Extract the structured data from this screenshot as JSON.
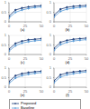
{
  "chart_data": [
    {
      "type": "line",
      "title": "(a)",
      "x": [
        0,
        10,
        20,
        30,
        40,
        50
      ],
      "xlim": [
        0,
        50
      ],
      "xticks": [
        0,
        25,
        50
      ],
      "ylim": [
        0,
        1
      ],
      "yticks": [
        0,
        0.5,
        1
      ],
      "grid": true,
      "legend": "bottom",
      "series": [
        {
          "name": "Proposed",
          "color": "#1f3f7a",
          "marker": "circle",
          "values": [
            0.3,
            0.62,
            0.72,
            0.78,
            0.82,
            0.85
          ]
        },
        {
          "name": "Baseline",
          "color": "#5b9bd5",
          "marker": "circle",
          "values": [
            0.2,
            0.5,
            0.62,
            0.7,
            0.75,
            0.78
          ]
        }
      ]
    },
    {
      "type": "line",
      "title": "(b)",
      "x": [
        0,
        10,
        20,
        30,
        40,
        50
      ],
      "xlim": [
        0,
        50
      ],
      "xticks": [
        0,
        25,
        50
      ],
      "ylim": [
        0,
        1
      ],
      "yticks": [
        0,
        0.5,
        1
      ],
      "grid": true,
      "legend": "bottom",
      "series": [
        {
          "name": "Proposed",
          "color": "#1f3f7a",
          "marker": "circle",
          "values": [
            0.35,
            0.66,
            0.76,
            0.81,
            0.84,
            0.86
          ]
        },
        {
          "name": "Baseline",
          "color": "#5b9bd5",
          "marker": "circle",
          "values": [
            0.25,
            0.55,
            0.66,
            0.72,
            0.76,
            0.79
          ]
        }
      ]
    },
    {
      "type": "line",
      "title": "(c)",
      "x": [
        0,
        10,
        20,
        30,
        40,
        50
      ],
      "xlim": [
        0,
        50
      ],
      "xticks": [
        0,
        25,
        50
      ],
      "ylim": [
        0,
        1
      ],
      "yticks": [
        0,
        0.5,
        1
      ],
      "grid": true,
      "legend": "bottom",
      "series": [
        {
          "name": "Proposed",
          "color": "#1f3f7a",
          "marker": "circle",
          "values": [
            0.28,
            0.58,
            0.7,
            0.77,
            0.8,
            0.83
          ]
        },
        {
          "name": "Baseline",
          "color": "#5b9bd5",
          "marker": "circle",
          "values": [
            0.18,
            0.46,
            0.6,
            0.67,
            0.72,
            0.75
          ]
        }
      ]
    },
    {
      "type": "line",
      "title": "(d)",
      "x": [
        0,
        10,
        20,
        30,
        40,
        50
      ],
      "xlim": [
        0,
        50
      ],
      "xticks": [
        0,
        25,
        50
      ],
      "ylim": [
        0,
        1
      ],
      "yticks": [
        0,
        0.5,
        1
      ],
      "grid": true,
      "legend": "bottom",
      "series": [
        {
          "name": "Proposed",
          "color": "#1f3f7a",
          "marker": "circle",
          "values": [
            0.32,
            0.64,
            0.74,
            0.8,
            0.83,
            0.86
          ]
        },
        {
          "name": "Baseline",
          "color": "#5b9bd5",
          "marker": "circle",
          "values": [
            0.22,
            0.52,
            0.64,
            0.71,
            0.75,
            0.78
          ]
        }
      ]
    },
    {
      "type": "line",
      "title": "(e)",
      "x": [
        0,
        10,
        20,
        30,
        40,
        50
      ],
      "xlim": [
        0,
        50
      ],
      "xticks": [
        0,
        25,
        50
      ],
      "ylim": [
        0,
        1
      ],
      "yticks": [
        0,
        0.5,
        1
      ],
      "grid": true,
      "legend": "bottom",
      "series": [
        {
          "name": "Proposed",
          "color": "#1f3f7a",
          "marker": "circle",
          "values": [
            0.3,
            0.6,
            0.71,
            0.77,
            0.81,
            0.84
          ]
        },
        {
          "name": "Baseline",
          "color": "#5b9bd5",
          "marker": "circle",
          "values": [
            0.2,
            0.48,
            0.61,
            0.68,
            0.73,
            0.77
          ]
        }
      ]
    },
    {
      "type": "line",
      "title": "(f)",
      "x": [
        0,
        10,
        20,
        30,
        40,
        50
      ],
      "xlim": [
        0,
        50
      ],
      "xticks": [
        0,
        25,
        50
      ],
      "ylim": [
        0,
        1
      ],
      "yticks": [
        0,
        0.5,
        1
      ],
      "grid": true,
      "legend": "bottom",
      "series": [
        {
          "name": "Proposed",
          "color": "#1f3f7a",
          "marker": "circle",
          "values": [
            0.34,
            0.65,
            0.75,
            0.8,
            0.84,
            0.87
          ]
        },
        {
          "name": "Baseline",
          "color": "#5b9bd5",
          "marker": "circle",
          "values": [
            0.24,
            0.53,
            0.65,
            0.71,
            0.76,
            0.8
          ]
        }
      ]
    }
  ]
}
